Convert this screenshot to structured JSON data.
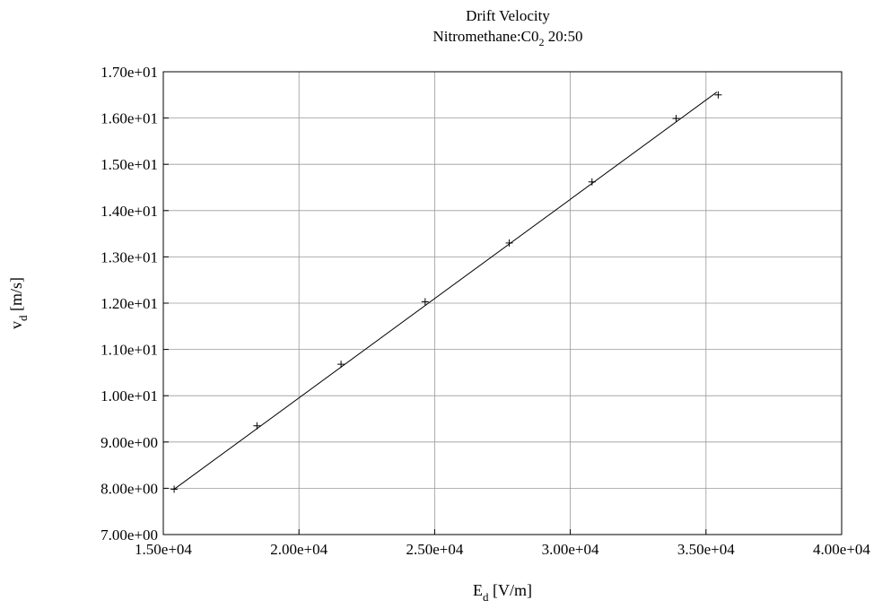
{
  "chart_data": {
    "type": "scatter",
    "title": "Drift Velocity",
    "subtitle": "Nitromethane:C0",
    "subtitle_sub": "2",
    "subtitle_tail": " 20:50",
    "xlabel": "E",
    "xlabel_sub": "d",
    "xlabel_unit": " [V/m]",
    "ylabel": "v",
    "ylabel_sub": "d",
    "ylabel_unit": " [m/s]",
    "xlim": [
      15000,
      40000
    ],
    "ylim": [
      7.0,
      17.0
    ],
    "grid": true,
    "x_ticks": [
      {
        "value": 15000,
        "label": "1.50e+04"
      },
      {
        "value": 20000,
        "label": "2.00e+04"
      },
      {
        "value": 25000,
        "label": "2.50e+04"
      },
      {
        "value": 30000,
        "label": "3.00e+04"
      },
      {
        "value": 35000,
        "label": "3.50e+04"
      },
      {
        "value": 40000,
        "label": "4.00e+04"
      }
    ],
    "y_ticks": [
      {
        "value": 7.0,
        "label": "7.00e+00"
      },
      {
        "value": 8.0,
        "label": "8.00e+00"
      },
      {
        "value": 9.0,
        "label": "9.00e+00"
      },
      {
        "value": 10.0,
        "label": "1.00e+01"
      },
      {
        "value": 11.0,
        "label": "1.10e+01"
      },
      {
        "value": 12.0,
        "label": "1.20e+01"
      },
      {
        "value": 13.0,
        "label": "1.30e+01"
      },
      {
        "value": 14.0,
        "label": "1.40e+01"
      },
      {
        "value": 15.0,
        "label": "1.50e+01"
      },
      {
        "value": 16.0,
        "label": "1.60e+01"
      },
      {
        "value": 17.0,
        "label": "1.70e+01"
      }
    ],
    "series": [
      {
        "marker": "plus",
        "x": [
          15400,
          18450,
          21550,
          24650,
          27750,
          30800,
          33900,
          35450
        ],
        "y": [
          7.98,
          9.35,
          10.68,
          12.03,
          13.3,
          14.62,
          15.99,
          16.5
        ]
      }
    ],
    "fit_line": {
      "x": [
        15400,
        35400
      ],
      "y": [
        7.98,
        16.56
      ]
    }
  }
}
